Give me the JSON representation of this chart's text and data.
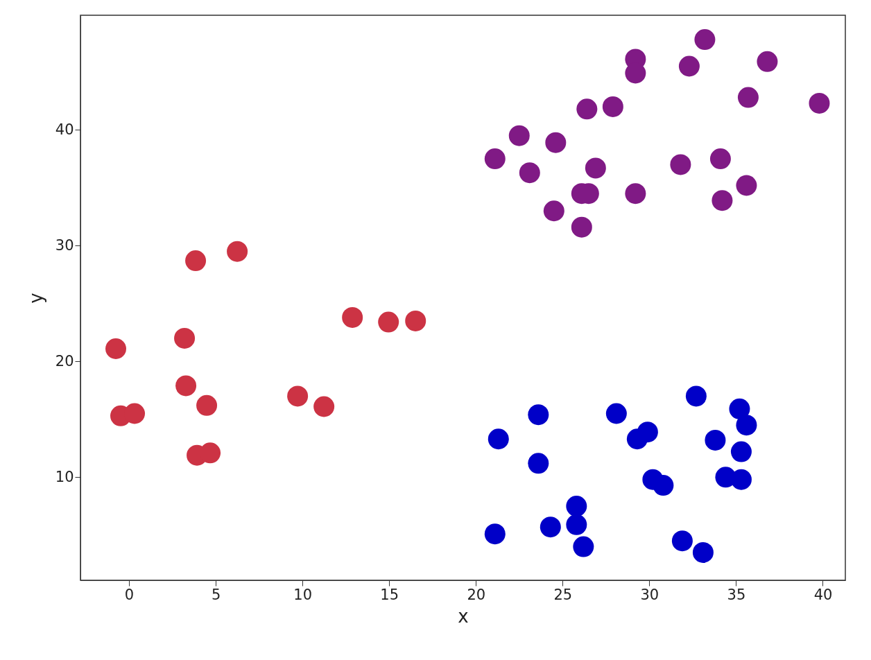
{
  "chart_data": {
    "type": "scatter",
    "xlabel": "x",
    "ylabel": "y",
    "xlim": [
      -2.8,
      41.3
    ],
    "ylim": [
      1.1,
      49.9
    ],
    "xticks": [
      0,
      5,
      10,
      15,
      20,
      25,
      30,
      35,
      40
    ],
    "yticks": [
      10,
      20,
      30,
      40
    ],
    "grid": false,
    "marker": "circle",
    "series": [
      {
        "color": "#cc3344",
        "x": [
          -0.76,
          -0.48,
          0.32,
          3.84,
          6.24,
          3.2,
          3.28,
          4.48,
          3.92,
          4.68,
          9.72,
          11.24,
          12.88,
          14.96,
          16.52
        ],
        "values": [
          21.1,
          15.3,
          15.5,
          28.7,
          29.5,
          22.0,
          17.9,
          16.2,
          11.9,
          12.1,
          17.0,
          16.1,
          23.8,
          23.4,
          23.5
        ]
      },
      {
        "color": "#801a85",
        "x": [
          21.1,
          22.5,
          23.1,
          24.6,
          24.5,
          26.1,
          26.1,
          26.5,
          26.4,
          26.9,
          27.9,
          29.2,
          29.2,
          29.2,
          32.3,
          33.2,
          36.8,
          35.7,
          39.8,
          31.8,
          34.1,
          35.6,
          34.2
        ],
        "values": [
          37.5,
          39.5,
          36.3,
          38.9,
          33.0,
          31.6,
          34.5,
          34.5,
          41.8,
          36.7,
          42.0,
          46.1,
          44.9,
          34.5,
          45.5,
          47.8,
          45.9,
          42.8,
          42.3,
          37.0,
          37.5,
          35.2,
          33.9
        ]
      },
      {
        "color": "#0000c8",
        "x": [
          21.1,
          21.3,
          23.6,
          23.6,
          24.3,
          25.8,
          25.8,
          26.2,
          28.1,
          29.3,
          29.9,
          30.2,
          30.8,
          31.9,
          33.1,
          32.7,
          33.8,
          35.2,
          35.6,
          35.3,
          34.4,
          35.3
        ],
        "values": [
          5.1,
          13.3,
          15.4,
          11.2,
          5.7,
          7.5,
          5.9,
          4.0,
          15.5,
          13.3,
          13.9,
          9.8,
          9.3,
          4.5,
          3.5,
          17.0,
          13.2,
          15.9,
          14.5,
          12.2,
          10.0,
          9.8
        ]
      }
    ]
  }
}
